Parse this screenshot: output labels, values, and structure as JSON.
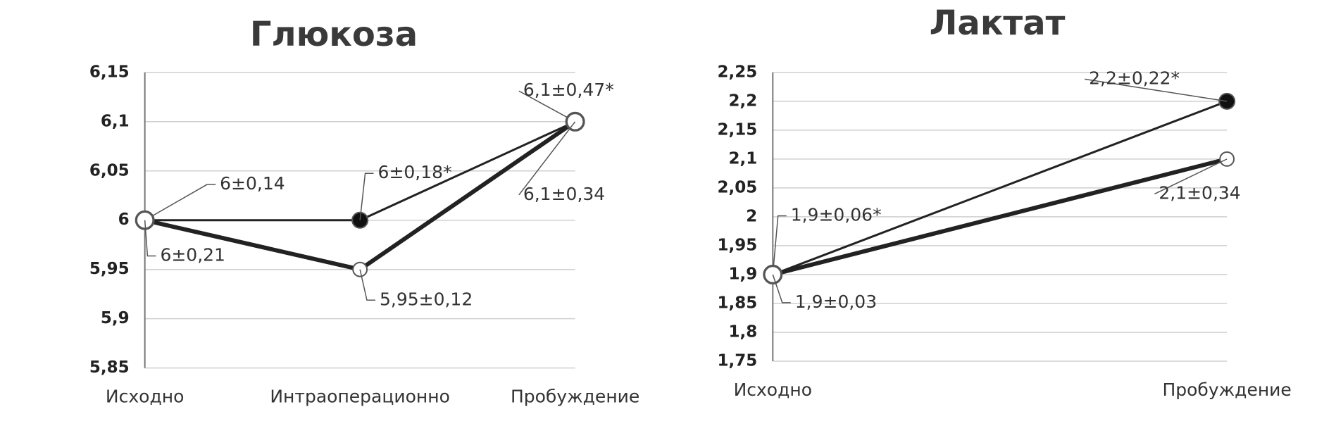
{
  "chart_data": [
    {
      "type": "line",
      "title": "Глюкоза",
      "categories": [
        "Исходно",
        "Интраоперационно",
        "Пробуждение"
      ],
      "series": [
        {
          "color": "#222222",
          "marker_fill": "#111111",
          "weight": "thin",
          "values": [
            6,
            6,
            6.1
          ],
          "value_labels": [
            "6±0,14",
            "6±0,18*",
            "6,1±0,47*"
          ]
        },
        {
          "color": "#222222",
          "marker_fill": "#ffffff",
          "weight": "bold",
          "values": [
            6,
            5.95,
            6.1
          ],
          "value_labels": [
            "6±0,21",
            "5,95±0,12",
            "6,1±0,34"
          ]
        }
      ],
      "ylim": [
        5.85,
        6.15
      ],
      "yticks": [
        {
          "value": 5.85,
          "label": "5,85"
        },
        {
          "value": 5.9,
          "label": "5,9"
        },
        {
          "value": 5.95,
          "label": "5,95"
        },
        6,
        {
          "value": 6.05,
          "label": "6,05"
        },
        {
          "value": 6.1,
          "label": "6,1"
        },
        {
          "value": 6.15,
          "label": "6,15"
        }
      ],
      "grid": true
    },
    {
      "type": "line",
      "title": "Лактат",
      "categories": [
        "Исходно",
        "Пробуждение"
      ],
      "series": [
        {
          "color": "#222222",
          "marker_fill": "#111111",
          "weight": "thin",
          "values": [
            1.9,
            2.2
          ],
          "value_labels": [
            "1,9±0,06*",
            "2,2±0,22*"
          ]
        },
        {
          "color": "#222222",
          "marker_fill": "#ffffff",
          "weight": "bold",
          "values": [
            1.9,
            2.1
          ],
          "value_labels": [
            "1,9±0,03",
            "2,1±0,34"
          ]
        }
      ],
      "ylim": [
        1.75,
        2.25
      ],
      "yticks": [
        {
          "value": 1.75,
          "label": "1,75"
        },
        {
          "value": 1.8,
          "label": "1,8"
        },
        {
          "value": 1.85,
          "label": "1,85"
        },
        {
          "value": 1.9,
          "label": "1,9"
        },
        {
          "value": 1.95,
          "label": "1,95"
        },
        2,
        {
          "value": 2.05,
          "label": "2,05"
        },
        {
          "value": 2.1,
          "label": "2,1"
        },
        {
          "value": 2.15,
          "label": "2,15"
        },
        {
          "value": 2.2,
          "label": "2,2"
        },
        {
          "value": 2.25,
          "label": "2,25"
        }
      ],
      "grid": true
    }
  ]
}
